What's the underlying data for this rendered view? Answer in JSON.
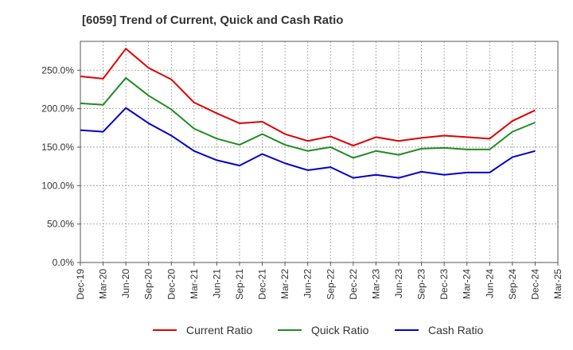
{
  "chart_data": {
    "type": "line",
    "title": "[6059]  Trend of Current, Quick and Cash Ratio",
    "xlabel": "",
    "ylabel": "",
    "ylim": [
      0,
      287.5
    ],
    "y_ticks": [
      0,
      50,
      100,
      150,
      200,
      250
    ],
    "y_tick_labels": [
      "0.0%",
      "50.0%",
      "100.0%",
      "150.0%",
      "200.0%",
      "250.0%"
    ],
    "categories": [
      "Dec-19",
      "Mar-20",
      "Jun-20",
      "Sep-20",
      "Dec-20",
      "Mar-21",
      "Jun-21",
      "Sep-21",
      "Dec-21",
      "Mar-22",
      "Jun-22",
      "Sep-22",
      "Dec-22",
      "Mar-23",
      "Jun-23",
      "Sep-23",
      "Dec-23",
      "Mar-24",
      "Jun-24",
      "Sep-24",
      "Dec-24",
      "Mar-25"
    ],
    "grid": true,
    "legend_position": "bottom",
    "series": [
      {
        "name": "Current Ratio",
        "color": "#e00000",
        "values": [
          242,
          239,
          278,
          253,
          238,
          208,
          194,
          181,
          183,
          167,
          158,
          164,
          152,
          163,
          158,
          162,
          165,
          163,
          161,
          184,
          198,
          null
        ]
      },
      {
        "name": "Quick Ratio",
        "color": "#228b22",
        "values": [
          207,
          205,
          240,
          217,
          199,
          174,
          161,
          153,
          167,
          153,
          145,
          150,
          136,
          145,
          140,
          148,
          149,
          147,
          147,
          170,
          182,
          null
        ]
      },
      {
        "name": "Cash Ratio",
        "color": "#0000cc",
        "values": [
          172,
          170,
          201,
          181,
          165,
          145,
          133,
          126,
          141,
          129,
          120,
          124,
          110,
          114,
          110,
          118,
          114,
          117,
          117,
          137,
          145,
          null
        ]
      }
    ]
  }
}
